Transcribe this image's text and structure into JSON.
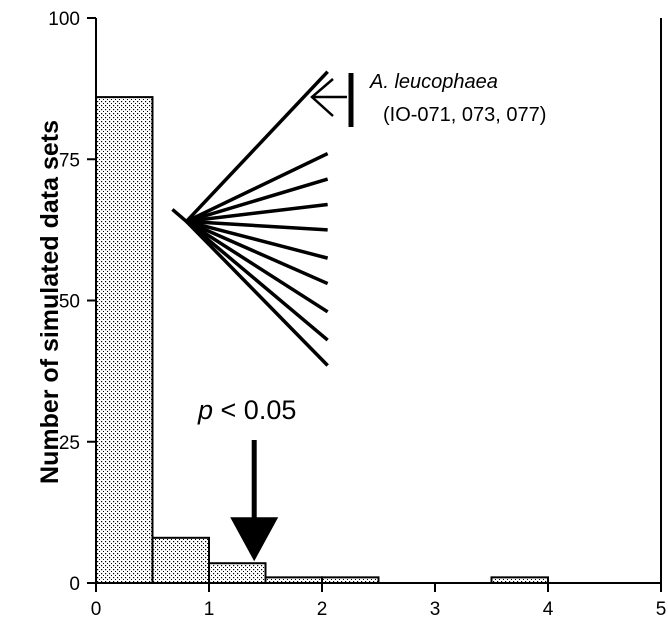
{
  "chart_data": {
    "type": "bar",
    "title": "",
    "xlabel": "",
    "ylabel": "Number of simulated data sets",
    "xlim": [
      0,
      5
    ],
    "ylim": [
      0,
      100
    ],
    "x_ticks": [
      "0",
      "1",
      "2",
      "3",
      "4",
      "5"
    ],
    "y_ticks": [
      "0",
      "25",
      "50",
      "75",
      "100"
    ],
    "grid": false,
    "bin_width": 0.5,
    "bins": [
      {
        "x0": 0.0,
        "x1": 0.5,
        "value": 86
      },
      {
        "x0": 0.5,
        "x1": 1.0,
        "value": 8
      },
      {
        "x0": 1.0,
        "x1": 1.5,
        "value": 3.5
      },
      {
        "x0": 1.5,
        "x1": 2.0,
        "value": 1
      },
      {
        "x0": 2.0,
        "x1": 2.5,
        "value": 1
      },
      {
        "x0": 2.5,
        "x1": 3.0,
        "value": 0
      },
      {
        "x0": 3.0,
        "x1": 3.5,
        "value": 0
      },
      {
        "x0": 3.5,
        "x1": 4.0,
        "value": 1
      },
      {
        "x0": 4.0,
        "x1": 4.5,
        "value": 0
      },
      {
        "x0": 4.5,
        "x1": 5.0,
        "value": 0
      }
    ],
    "fan_lines": {
      "origin": {
        "x": 0.8,
        "y": 64
      },
      "x_end": 2.05,
      "y_ends": [
        90.5,
        76,
        71.5,
        67,
        62.5,
        57.5,
        53,
        48,
        43,
        38.5
      ]
    },
    "annotations": {
      "species": "A. leucophaea",
      "ids": "(IO-071, 073, 077)",
      "p_symbol": "p",
      "p_rest": " < 0.05",
      "arrow_x": 1.4,
      "arrow_tip_y": 3.5
    }
  }
}
